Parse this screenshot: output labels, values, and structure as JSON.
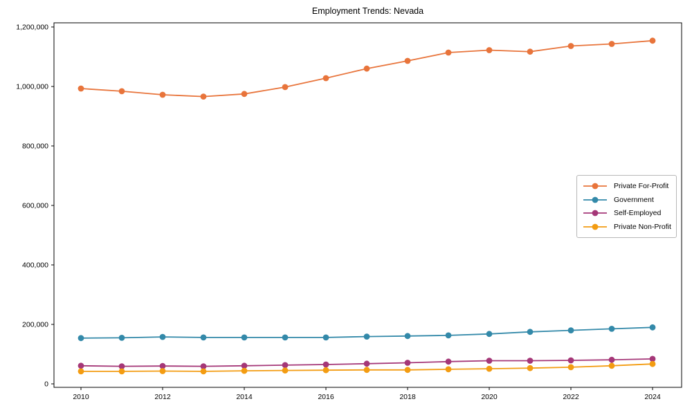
{
  "chart_data": {
    "type": "line",
    "title": "Employment Trends: Nevada",
    "xlabel": "",
    "ylabel": "",
    "x": [
      2010,
      2011,
      2012,
      2013,
      2014,
      2015,
      2016,
      2017,
      2018,
      2019,
      2020,
      2021,
      2022,
      2023,
      2024
    ],
    "series": [
      {
        "name": "Private For-Profit",
        "color": "#e8743b",
        "values": [
          993000,
          984000,
          972000,
          966000,
          975000,
          998000,
          1028000,
          1060000,
          1086000,
          1114000,
          1122000,
          1117000,
          1136000,
          1143000,
          1154000
        ]
      },
      {
        "name": "Government",
        "color": "#3389a9",
        "values": [
          154000,
          155000,
          158000,
          156000,
          156000,
          156000,
          156000,
          159000,
          161000,
          163000,
          168000,
          175000,
          180000,
          185000,
          190000
        ]
      },
      {
        "name": "Self-Employed",
        "color": "#a53778",
        "values": [
          61000,
          59000,
          60000,
          59000,
          61000,
          63000,
          65000,
          68000,
          71000,
          75000,
          78000,
          78000,
          79000,
          81000,
          84000
        ]
      },
      {
        "name": "Private Non-Profit",
        "color": "#f39c12",
        "values": [
          42000,
          42000,
          43000,
          42000,
          44000,
          45000,
          46000,
          47000,
          47000,
          49000,
          51000,
          53000,
          56000,
          61000,
          67000
        ]
      }
    ],
    "xticks": [
      2010,
      2012,
      2014,
      2016,
      2018,
      2020,
      2022,
      2024
    ],
    "yticks": [
      0,
      200000,
      400000,
      600000,
      800000,
      1000000,
      1200000
    ],
    "ytick_labels": [
      "0",
      "200,000",
      "400,000",
      "600,000",
      "800,000",
      "1,000,000",
      "1,200,000"
    ],
    "xlim": [
      2010,
      2024
    ],
    "ylim": [
      0,
      1200000
    ],
    "grid": false,
    "legend_position": "center right",
    "axis_color": "#000000"
  }
}
